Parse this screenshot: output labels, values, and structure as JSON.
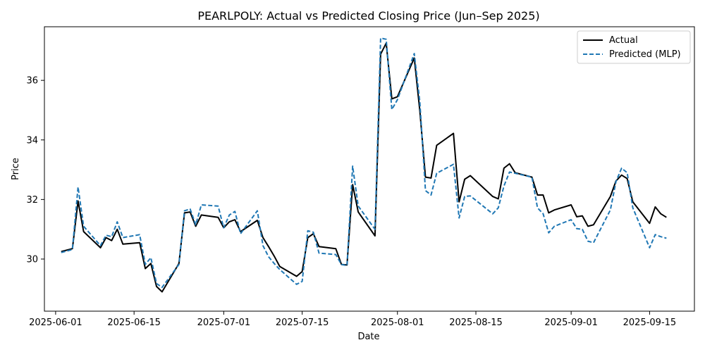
{
  "chart_data": {
    "type": "line",
    "title": "PEARLPOLY: Actual vs Predicted Closing Price (Jun–Sep 2025)",
    "xlabel": "Date",
    "ylabel": "Price",
    "x_ticks": [
      "2025-06-01",
      "2025-06-15",
      "2025-07-01",
      "2025-07-15",
      "2025-08-01",
      "2025-08-15",
      "2025-09-01",
      "2025-09-15"
    ],
    "y_ticks": [
      30,
      32,
      34,
      36
    ],
    "xlim": [
      "2025-05-30",
      "2025-09-23"
    ],
    "ylim": [
      28.25,
      37.8
    ],
    "legend": {
      "location": "upper-right"
    },
    "grid": false,
    "series": [
      {
        "name": "Actual",
        "color": "#000000",
        "style": "solid",
        "points": [
          [
            "2025-06-02",
            30.25
          ],
          [
            "2025-06-04",
            30.35
          ],
          [
            "2025-06-05",
            31.95
          ],
          [
            "2025-06-06",
            30.92
          ],
          [
            "2025-06-09",
            30.38
          ],
          [
            "2025-06-10",
            30.72
          ],
          [
            "2025-06-11",
            30.62
          ],
          [
            "2025-06-12",
            31.0
          ],
          [
            "2025-06-13",
            30.5
          ],
          [
            "2025-06-16",
            30.55
          ],
          [
            "2025-06-17",
            29.68
          ],
          [
            "2025-06-18",
            29.85
          ],
          [
            "2025-06-19",
            29.08
          ],
          [
            "2025-06-20",
            28.9
          ],
          [
            "2025-06-23",
            29.85
          ],
          [
            "2025-06-24",
            31.55
          ],
          [
            "2025-06-25",
            31.58
          ],
          [
            "2025-06-26",
            31.1
          ],
          [
            "2025-06-27",
            31.48
          ],
          [
            "2025-06-30",
            31.4
          ],
          [
            "2025-07-01",
            31.05
          ],
          [
            "2025-07-02",
            31.25
          ],
          [
            "2025-07-03",
            31.32
          ],
          [
            "2025-07-04",
            30.92
          ],
          [
            "2025-07-07",
            31.3
          ],
          [
            "2025-07-08",
            30.72
          ],
          [
            "2025-07-09",
            30.42
          ],
          [
            "2025-07-10",
            30.1
          ],
          [
            "2025-07-11",
            29.75
          ],
          [
            "2025-07-14",
            29.42
          ],
          [
            "2025-07-15",
            29.58
          ],
          [
            "2025-07-16",
            30.72
          ],
          [
            "2025-07-17",
            30.85
          ],
          [
            "2025-07-18",
            30.42
          ],
          [
            "2025-07-21",
            30.35
          ],
          [
            "2025-07-22",
            29.82
          ],
          [
            "2025-07-23",
            29.8
          ],
          [
            "2025-07-24",
            32.5
          ],
          [
            "2025-07-25",
            31.58
          ],
          [
            "2025-07-28",
            30.78
          ],
          [
            "2025-07-29",
            36.88
          ],
          [
            "2025-07-30",
            37.25
          ],
          [
            "2025-07-31",
            35.38
          ],
          [
            "2025-08-01",
            35.45
          ],
          [
            "2025-08-04",
            36.75
          ],
          [
            "2025-08-05",
            34.98
          ],
          [
            "2025-08-06",
            32.75
          ],
          [
            "2025-08-07",
            32.72
          ],
          [
            "2025-08-08",
            33.82
          ],
          [
            "2025-08-11",
            34.22
          ],
          [
            "2025-08-12",
            31.92
          ],
          [
            "2025-08-13",
            32.68
          ],
          [
            "2025-08-14",
            32.8
          ],
          [
            "2025-08-18",
            32.1
          ],
          [
            "2025-08-19",
            32.02
          ],
          [
            "2025-08-20",
            33.05
          ],
          [
            "2025-08-21",
            33.2
          ],
          [
            "2025-08-22",
            32.9
          ],
          [
            "2025-08-25",
            32.75
          ],
          [
            "2025-08-26",
            32.15
          ],
          [
            "2025-08-27",
            32.15
          ],
          [
            "2025-08-28",
            31.55
          ],
          [
            "2025-08-29",
            31.65
          ],
          [
            "2025-09-01",
            31.82
          ],
          [
            "2025-09-02",
            31.42
          ],
          [
            "2025-09-03",
            31.45
          ],
          [
            "2025-09-04",
            31.1
          ],
          [
            "2025-09-05",
            31.15
          ],
          [
            "2025-09-08",
            32.1
          ],
          [
            "2025-09-09",
            32.62
          ],
          [
            "2025-09-10",
            32.82
          ],
          [
            "2025-09-11",
            32.7
          ],
          [
            "2025-09-12",
            31.92
          ],
          [
            "2025-09-15",
            31.2
          ],
          [
            "2025-09-16",
            31.75
          ],
          [
            "2025-09-17",
            31.52
          ],
          [
            "2025-09-18",
            31.4
          ]
        ]
      },
      {
        "name": "Predicted (MLP)",
        "color": "#1f77b4",
        "style": "dashed",
        "points": [
          [
            "2025-06-02",
            30.22
          ],
          [
            "2025-06-04",
            30.32
          ],
          [
            "2025-06-05",
            32.42
          ],
          [
            "2025-06-06",
            31.1
          ],
          [
            "2025-06-09",
            30.45
          ],
          [
            "2025-06-10",
            30.8
          ],
          [
            "2025-06-11",
            30.75
          ],
          [
            "2025-06-12",
            31.25
          ],
          [
            "2025-06-13",
            30.72
          ],
          [
            "2025-06-16",
            30.82
          ],
          [
            "2025-06-17",
            29.82
          ],
          [
            "2025-06-18",
            30.05
          ],
          [
            "2025-06-19",
            29.18
          ],
          [
            "2025-06-20",
            29.05
          ],
          [
            "2025-06-23",
            29.82
          ],
          [
            "2025-06-24",
            31.62
          ],
          [
            "2025-06-25",
            31.68
          ],
          [
            "2025-06-26",
            31.15
          ],
          [
            "2025-06-27",
            31.82
          ],
          [
            "2025-06-30",
            31.78
          ],
          [
            "2025-07-01",
            31.05
          ],
          [
            "2025-07-02",
            31.48
          ],
          [
            "2025-07-03",
            31.6
          ],
          [
            "2025-07-04",
            30.85
          ],
          [
            "2025-07-07",
            31.62
          ],
          [
            "2025-07-08",
            30.45
          ],
          [
            "2025-07-09",
            30.08
          ],
          [
            "2025-07-10",
            29.85
          ],
          [
            "2025-07-11",
            29.65
          ],
          [
            "2025-07-14",
            29.15
          ],
          [
            "2025-07-15",
            29.25
          ],
          [
            "2025-07-16",
            30.95
          ],
          [
            "2025-07-17",
            30.9
          ],
          [
            "2025-07-18",
            30.2
          ],
          [
            "2025-07-21",
            30.15
          ],
          [
            "2025-07-22",
            29.82
          ],
          [
            "2025-07-23",
            29.78
          ],
          [
            "2025-07-24",
            33.12
          ],
          [
            "2025-07-25",
            31.78
          ],
          [
            "2025-07-28",
            31.0
          ],
          [
            "2025-07-29",
            37.42
          ],
          [
            "2025-07-30",
            37.38
          ],
          [
            "2025-07-31",
            35.02
          ],
          [
            "2025-08-01",
            35.35
          ],
          [
            "2025-08-04",
            36.9
          ],
          [
            "2025-08-05",
            35.28
          ],
          [
            "2025-08-06",
            32.3
          ],
          [
            "2025-08-07",
            32.15
          ],
          [
            "2025-08-08",
            32.88
          ],
          [
            "2025-08-11",
            33.18
          ],
          [
            "2025-08-12",
            31.38
          ],
          [
            "2025-08-13",
            32.1
          ],
          [
            "2025-08-14",
            32.12
          ],
          [
            "2025-08-18",
            31.52
          ],
          [
            "2025-08-19",
            31.72
          ],
          [
            "2025-08-20",
            32.45
          ],
          [
            "2025-08-21",
            32.92
          ],
          [
            "2025-08-22",
            32.88
          ],
          [
            "2025-08-25",
            32.75
          ],
          [
            "2025-08-26",
            31.72
          ],
          [
            "2025-08-27",
            31.52
          ],
          [
            "2025-08-28",
            30.88
          ],
          [
            "2025-08-29",
            31.1
          ],
          [
            "2025-09-01",
            31.32
          ],
          [
            "2025-09-02",
            31.02
          ],
          [
            "2025-09-03",
            31.0
          ],
          [
            "2025-09-04",
            30.6
          ],
          [
            "2025-09-05",
            30.55
          ],
          [
            "2025-09-08",
            31.65
          ],
          [
            "2025-09-09",
            32.6
          ],
          [
            "2025-09-10",
            33.05
          ],
          [
            "2025-09-11",
            32.9
          ],
          [
            "2025-09-12",
            31.72
          ],
          [
            "2025-09-15",
            30.38
          ],
          [
            "2025-09-16",
            30.82
          ],
          [
            "2025-09-17",
            30.75
          ],
          [
            "2025-09-18",
            30.7
          ]
        ]
      }
    ]
  }
}
